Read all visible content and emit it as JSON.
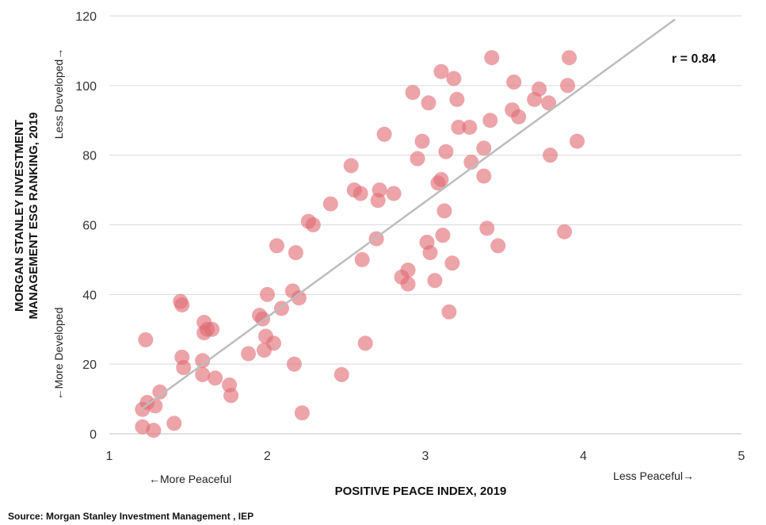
{
  "chart_data": {
    "type": "scatter",
    "title": "",
    "xlabel": "POSITIVE PEACE INDEX, 2019",
    "ylabel_line1": "MORGAN STANLEY INVESTMENT",
    "ylabel_line2": "MANAGEMENT ESG RANKING, 2019",
    "x_left_label": "←More Peaceful",
    "x_right_label": "Less Peaceful→",
    "y_bottom_label": "←More Developed",
    "y_top_label": "Less Developed→",
    "xlim": [
      1,
      5
    ],
    "ylim": [
      0,
      120
    ],
    "x_ticks": [
      "1",
      "2",
      "3",
      "4",
      "5"
    ],
    "y_ticks": [
      "0",
      "20",
      "40",
      "60",
      "80",
      "100",
      "120"
    ],
    "grid": "horizontal",
    "annotation": "r = 0.84",
    "marker_color": "#e06c75",
    "trendline_color": "#bdbdbd",
    "trendline": {
      "x": [
        1.2,
        4.58
      ],
      "y": [
        7,
        119
      ]
    },
    "points": [
      [
        1.21,
        7
      ],
      [
        1.21,
        2
      ],
      [
        1.24,
        9
      ],
      [
        1.23,
        27
      ],
      [
        1.29,
        8
      ],
      [
        1.28,
        1
      ],
      [
        1.32,
        12
      ],
      [
        1.41,
        3
      ],
      [
        1.45,
        38
      ],
      [
        1.46,
        37
      ],
      [
        1.46,
        22
      ],
      [
        1.47,
        19
      ],
      [
        1.59,
        21
      ],
      [
        1.59,
        17
      ],
      [
        1.6,
        32
      ],
      [
        1.6,
        29
      ],
      [
        1.62,
        30
      ],
      [
        1.65,
        30
      ],
      [
        1.67,
        16
      ],
      [
        1.76,
        14
      ],
      [
        1.77,
        11
      ],
      [
        1.88,
        23
      ],
      [
        1.95,
        34
      ],
      [
        1.97,
        33
      ],
      [
        1.98,
        24
      ],
      [
        1.99,
        28
      ],
      [
        2.0,
        40
      ],
      [
        2.04,
        26
      ],
      [
        2.06,
        54
      ],
      [
        2.09,
        36
      ],
      [
        2.16,
        41
      ],
      [
        2.17,
        20
      ],
      [
        2.18,
        52
      ],
      [
        2.2,
        39
      ],
      [
        2.22,
        6
      ],
      [
        2.26,
        61
      ],
      [
        2.29,
        60
      ],
      [
        2.4,
        66
      ],
      [
        2.47,
        17
      ],
      [
        2.53,
        77
      ],
      [
        2.55,
        70
      ],
      [
        2.59,
        69
      ],
      [
        2.6,
        50
      ],
      [
        2.62,
        26
      ],
      [
        2.69,
        56
      ],
      [
        2.7,
        67
      ],
      [
        2.71,
        70
      ],
      [
        2.74,
        86
      ],
      [
        2.8,
        69
      ],
      [
        2.85,
        45
      ],
      [
        2.89,
        47
      ],
      [
        2.89,
        43
      ],
      [
        2.92,
        98
      ],
      [
        2.95,
        79
      ],
      [
        2.98,
        84
      ],
      [
        3.01,
        55
      ],
      [
        3.02,
        95
      ],
      [
        3.03,
        52
      ],
      [
        3.06,
        44
      ],
      [
        3.08,
        72
      ],
      [
        3.1,
        73
      ],
      [
        3.1,
        104
      ],
      [
        3.11,
        57
      ],
      [
        3.12,
        64
      ],
      [
        3.13,
        81
      ],
      [
        3.15,
        35
      ],
      [
        3.17,
        49
      ],
      [
        3.18,
        102
      ],
      [
        3.2,
        96
      ],
      [
        3.21,
        88
      ],
      [
        3.28,
        88
      ],
      [
        3.29,
        78
      ],
      [
        3.37,
        82
      ],
      [
        3.37,
        74
      ],
      [
        3.39,
        59
      ],
      [
        3.41,
        90
      ],
      [
        3.42,
        108
      ],
      [
        3.46,
        54
      ],
      [
        3.55,
        93
      ],
      [
        3.56,
        101
      ],
      [
        3.59,
        91
      ],
      [
        3.69,
        96
      ],
      [
        3.72,
        99
      ],
      [
        3.78,
        95
      ],
      [
        3.79,
        80
      ],
      [
        3.88,
        58
      ],
      [
        3.9,
        100
      ],
      [
        3.91,
        108
      ],
      [
        3.96,
        84
      ]
    ]
  },
  "source": "Source: Morgan Stanley Investment Management , IEP"
}
